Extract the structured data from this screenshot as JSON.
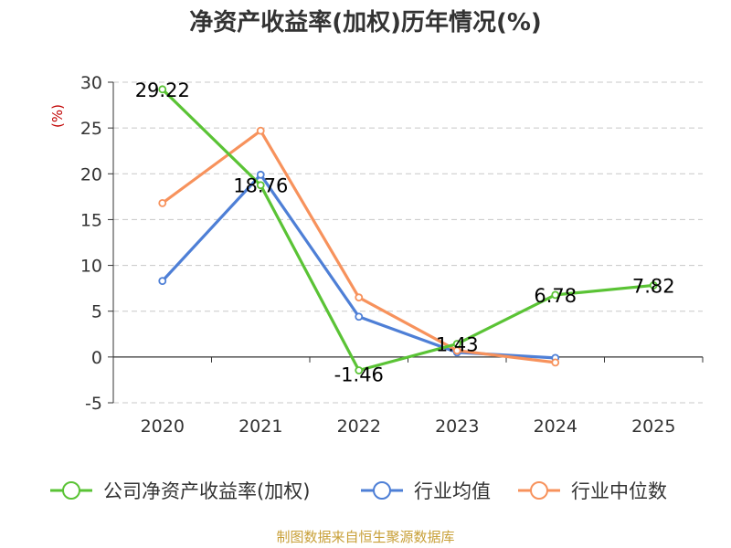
{
  "chart_data": {
    "type": "line",
    "title": "净资产收益率(加权)历年情况(%)",
    "ylabel": "(%)",
    "xlabel": "",
    "categories": [
      "2020",
      "2021",
      "2022",
      "2023",
      "2024",
      "2025"
    ],
    "yticks": [
      -5,
      0,
      5,
      10,
      15,
      20,
      25,
      30
    ],
    "ylim": [
      -5,
      30
    ],
    "grid": true,
    "legend_position": "bottom",
    "series": [
      {
        "name": "公司净资产收益率(加权)",
        "color": "#5ac335",
        "values": [
          29.22,
          18.76,
          -1.46,
          1.43,
          6.78,
          7.82
        ],
        "labels": [
          "29.22",
          "18.76",
          "-1.46",
          "1.43",
          "6.78",
          "7.82"
        ]
      },
      {
        "name": "行业均值",
        "color": "#4e7fd6",
        "values": [
          8.3,
          19.9,
          4.4,
          0.5,
          -0.1,
          null
        ]
      },
      {
        "name": "行业中位数",
        "color": "#f7925c",
        "values": [
          16.8,
          24.7,
          6.5,
          0.7,
          -0.6,
          null
        ]
      }
    ],
    "source": "制图数据来自恒生聚源数据库"
  }
}
